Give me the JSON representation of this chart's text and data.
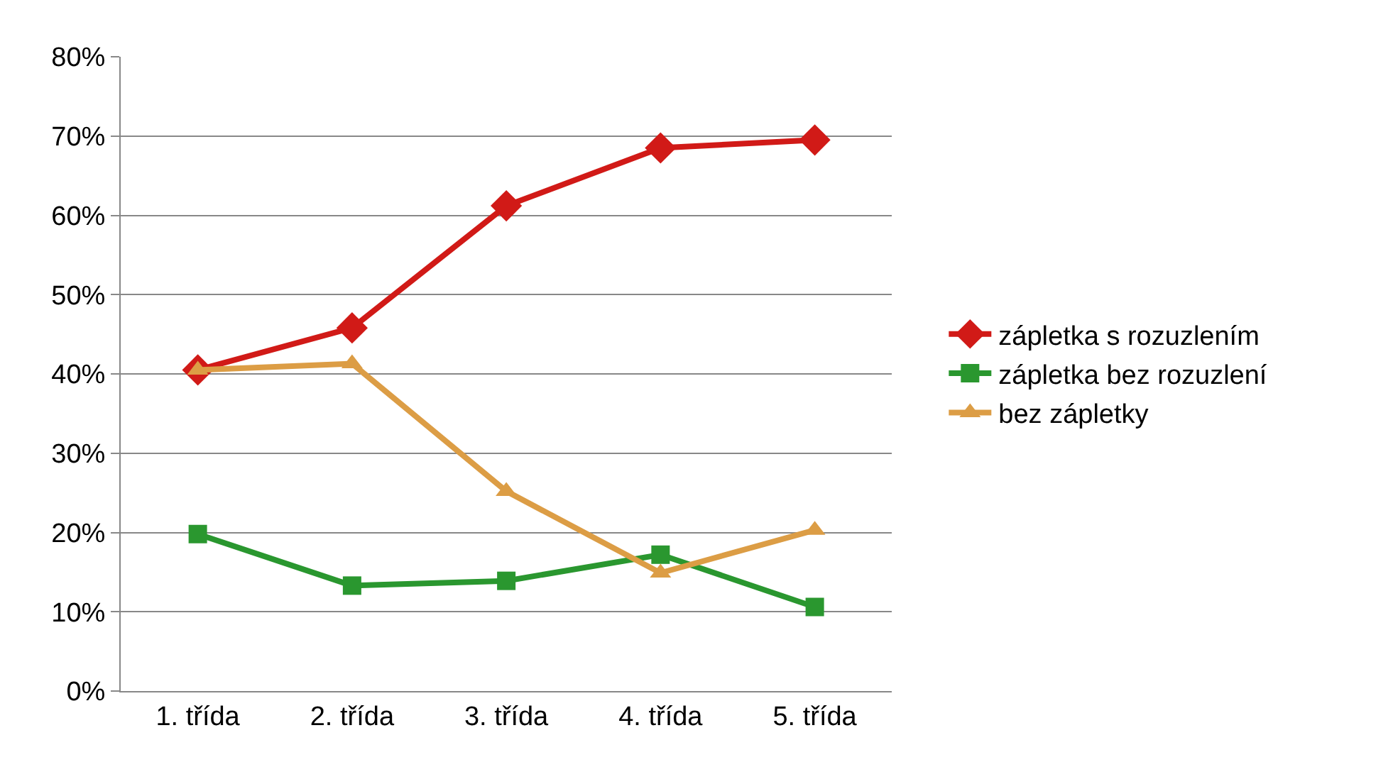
{
  "chart_data": {
    "type": "line",
    "categories": [
      "1. třída",
      "2. třída",
      "3. třída",
      "4. třída",
      "5. třída"
    ],
    "series": [
      {
        "name": "zápletka s rozuzlením",
        "color": "#d11a17",
        "marker": "diamond",
        "values": [
          40.5,
          45.8,
          61.2,
          68.5,
          69.5
        ]
      },
      {
        "name": "zápletka bez rozuzlení",
        "color": "#2a972f",
        "marker": "square",
        "values": [
          19.8,
          13.3,
          13.9,
          17.2,
          10.6
        ]
      },
      {
        "name": "bez zápletky",
        "color": "#dc9d45",
        "marker": "triangle",
        "values": [
          40.5,
          41.3,
          25.2,
          14.9,
          20.3
        ]
      }
    ],
    "ylim": [
      0,
      80
    ],
    "yticks": [
      {
        "value": 0,
        "label": "0%"
      },
      {
        "value": 10,
        "label": "10%"
      },
      {
        "value": 20,
        "label": "20%"
      },
      {
        "value": 30,
        "label": "30%"
      },
      {
        "value": 40,
        "label": "40%"
      },
      {
        "value": 50,
        "label": "50%"
      },
      {
        "value": 60,
        "label": "60%"
      },
      {
        "value": 70,
        "label": "70%"
      },
      {
        "value": 80,
        "label": "80%"
      }
    ],
    "grid": "y",
    "legend": "right",
    "line_style": "solid"
  }
}
